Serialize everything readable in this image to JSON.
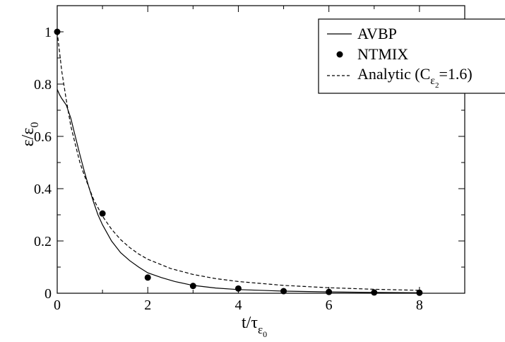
{
  "chart_data": {
    "type": "line",
    "xlabel": {
      "main": "t/τ",
      "sub": "ε",
      "subsub": "0"
    },
    "ylabel": {
      "main": "ε/ε",
      "sub": "0"
    },
    "xlim": [
      0,
      9
    ],
    "ylim": [
      0,
      1.1
    ],
    "x_ticks": [
      0,
      2,
      4,
      6,
      8
    ],
    "y_ticks": [
      0,
      0.2,
      0.4,
      0.6,
      0.8,
      1
    ],
    "x_tick_labels": [
      "0",
      "2",
      "4",
      "6",
      "8"
    ],
    "y_tick_labels": [
      "0",
      "0.2",
      "0.4",
      "0.6",
      "0.8",
      "1"
    ],
    "grid": false,
    "legend_position": "top-right",
    "series": [
      {
        "name": "AVBP",
        "style": "solid",
        "color": "#000000",
        "x": [
          0,
          0.05,
          0.1,
          0.2,
          0.3,
          0.4,
          0.5,
          0.6,
          0.7,
          0.8,
          0.9,
          1.0,
          1.2,
          1.4,
          1.6,
          1.8,
          2.0,
          2.3,
          2.6,
          3.0,
          3.5,
          4.0,
          5.0,
          6.0,
          7.0,
          8.0
        ],
        "y": [
          0.78,
          0.76,
          0.745,
          0.72,
          0.67,
          0.6,
          0.53,
          0.465,
          0.405,
          0.35,
          0.3,
          0.262,
          0.2,
          0.155,
          0.125,
          0.1,
          0.078,
          0.06,
          0.045,
          0.03,
          0.02,
          0.014,
          0.008,
          0.005,
          0.003,
          0.002
        ]
      },
      {
        "name": "NTMIX",
        "style": "markers",
        "color": "#000000",
        "x": [
          0,
          1,
          2,
          3,
          4,
          5,
          6,
          7,
          8
        ],
        "y": [
          1.0,
          0.305,
          0.06,
          0.028,
          0.018,
          0.008,
          0.005,
          0.003,
          0.002
        ]
      },
      {
        "name": "Analytic (C",
        "name_sub": "ε",
        "name_subsub": "2",
        "name_tail": "=1.6)",
        "style": "dashed",
        "color": "#000000",
        "x": [
          0,
          0.1,
          0.2,
          0.3,
          0.4,
          0.5,
          0.6,
          0.8,
          1.0,
          1.2,
          1.4,
          1.6,
          1.8,
          2.0,
          2.5,
          3.0,
          3.5,
          4.0,
          5.0,
          6.0,
          7.0,
          8.0
        ],
        "y": [
          1.0,
          0.85,
          0.74,
          0.64,
          0.57,
          0.5,
          0.45,
          0.36,
          0.295,
          0.245,
          0.205,
          0.175,
          0.15,
          0.13,
          0.095,
          0.072,
          0.056,
          0.045,
          0.03,
          0.021,
          0.015,
          0.011
        ]
      }
    ]
  }
}
